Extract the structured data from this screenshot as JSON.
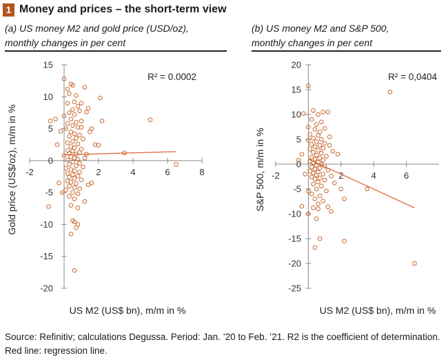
{
  "figure": {
    "number": "1",
    "title": "Money and prices – the short-term view"
  },
  "panels": [
    {
      "subtitle_line1": "(a) US money M2 and gold price (USD/oz),",
      "subtitle_line2": "monthly changes in per cent"
    },
    {
      "subtitle_line1": "(b) US money M2 and S&P 500,",
      "subtitle_line2": "monthly changes in per cent"
    }
  ],
  "source_text": "Source: Refinitiv; calculations Degussa. Period: Jan. ’20 to Feb. ’21. R2 is the coefficient of determination. Red line: regression line.",
  "colors": {
    "accent": "#b5541f",
    "marker": "#c8672d",
    "regression": "#e06a3b",
    "axis": "#888888"
  },
  "chart_data": [
    {
      "type": "scatter",
      "xlabel": "US M2 (US$ bn), m/m in %",
      "ylabel": "Gold price (US$/oz), m/m in %",
      "annotation": "R² = 0.0002",
      "xlim": [
        -2,
        8
      ],
      "ylim": [
        -20,
        15
      ],
      "xticks": [
        "-2",
        "0",
        "2",
        "4",
        "6",
        "8"
      ],
      "yticks": [
        "-20",
        "-15",
        "-10",
        "-5",
        "0",
        "5",
        "10",
        "15"
      ],
      "regression": {
        "x": [
          0,
          6.5
        ],
        "y": [
          0.9,
          1.4
        ]
      },
      "points": [
        [
          0.0,
          12.8
        ],
        [
          0.2,
          11.2
        ],
        [
          0.4,
          12.0
        ],
        [
          0.5,
          11.8
        ],
        [
          0.3,
          10.5
        ],
        [
          0.7,
          10.2
        ],
        [
          1.2,
          11.5
        ],
        [
          0.6,
          9.2
        ],
        [
          1.0,
          9.0
        ],
        [
          0.8,
          8.5
        ],
        [
          0.5,
          8.0
        ],
        [
          0.9,
          7.8
        ],
        [
          0.3,
          7.5
        ],
        [
          0.6,
          7.2
        ],
        [
          1.3,
          7.6
        ],
        [
          0.0,
          7.0
        ],
        [
          -0.5,
          6.5
        ],
        [
          -0.8,
          6.2
        ],
        [
          0.4,
          6.5
        ],
        [
          0.7,
          6.0
        ],
        [
          0.2,
          5.8
        ],
        [
          1.0,
          6.2
        ],
        [
          0.5,
          5.5
        ],
        [
          0.8,
          5.2
        ],
        [
          1.6,
          5.0
        ],
        [
          0.1,
          5.0
        ],
        [
          -0.2,
          4.6
        ],
        [
          0.4,
          4.5
        ],
        [
          0.6,
          4.2
        ],
        [
          0.9,
          4.0
        ],
        [
          0.3,
          3.8
        ],
        [
          0.7,
          3.5
        ],
        [
          1.1,
          3.4
        ],
        [
          0.5,
          3.0
        ],
        [
          0.2,
          2.8
        ],
        [
          0.8,
          2.6
        ],
        [
          -0.4,
          2.5
        ],
        [
          0.4,
          2.2
        ],
        [
          0.6,
          2.0
        ],
        [
          1.0,
          1.8
        ],
        [
          0.2,
          1.6
        ],
        [
          0.5,
          1.5
        ],
        [
          0.9,
          1.3
        ],
        [
          0.3,
          1.1
        ],
        [
          0.7,
          1.0
        ],
        [
          1.3,
          1.0
        ],
        [
          0.0,
          0.8
        ],
        [
          0.4,
          0.6
        ],
        [
          0.6,
          0.4
        ],
        [
          0.8,
          0.2
        ],
        [
          0.2,
          0.1
        ],
        [
          0.5,
          -0.2
        ],
        [
          0.9,
          -0.4
        ],
        [
          0.3,
          -0.6
        ],
        [
          0.7,
          -0.8
        ],
        [
          1.1,
          -1.0
        ],
        [
          0.1,
          -1.2
        ],
        [
          0.4,
          -1.4
        ],
        [
          0.6,
          -1.6
        ],
        [
          0.9,
          -1.8
        ],
        [
          0.2,
          -2.0
        ],
        [
          0.5,
          -2.2
        ],
        [
          0.8,
          -2.4
        ],
        [
          0.3,
          -2.6
        ],
        [
          0.6,
          -2.8
        ],
        [
          1.0,
          -3.0
        ],
        [
          0.2,
          -3.2
        ],
        [
          0.4,
          -3.4
        ],
        [
          0.7,
          -3.6
        ],
        [
          1.4,
          -3.8
        ],
        [
          0.3,
          -4.0
        ],
        [
          0.6,
          -4.2
        ],
        [
          0.9,
          -4.4
        ],
        [
          0.1,
          -4.6
        ],
        [
          0.5,
          -5.0
        ],
        [
          0.8,
          -5.2
        ],
        [
          0.3,
          -5.6
        ],
        [
          0.6,
          -6.0
        ],
        [
          1.2,
          -6.4
        ],
        [
          0.4,
          -7.0
        ],
        [
          0.8,
          -7.4
        ],
        [
          -0.9,
          -7.2
        ],
        [
          0.5,
          -9.4
        ],
        [
          0.6,
          -9.6
        ],
        [
          0.8,
          -10.0
        ],
        [
          0.4,
          -11.5
        ],
        [
          0.6,
          -17.2
        ],
        [
          0.7,
          -10.5
        ],
        [
          1.5,
          4.5
        ],
        [
          1.8,
          2.5
        ],
        [
          2.1,
          9.8
        ],
        [
          2.2,
          6.2
        ],
        [
          2.0,
          2.4
        ],
        [
          3.5,
          1.2
        ],
        [
          5.0,
          6.4
        ],
        [
          6.5,
          -0.6
        ],
        [
          1.6,
          -3.5
        ],
        [
          1.2,
          0.4
        ],
        [
          -0.3,
          -3.5
        ],
        [
          -0.1,
          -5.0
        ],
        [
          1.0,
          5.2
        ],
        [
          0.2,
          9.0
        ],
        [
          1.4,
          8.2
        ]
      ]
    },
    {
      "type": "scatter",
      "xlabel": "US M2 (US$ bn), m/m in %",
      "ylabel": "S&P 500, m/m in %",
      "annotation": "R² = 0,0404",
      "xlim": [
        -2,
        8
      ],
      "ylim": [
        -25,
        20
      ],
      "xticks": [
        "-2",
        "0",
        "2",
        "4",
        "6"
      ],
      "yticks": [
        "-25",
        "-20",
        "-15",
        "-10",
        "-5",
        "0",
        "5",
        "10",
        "15",
        "20"
      ],
      "regression": {
        "x": [
          0,
          6.5
        ],
        "y": [
          1.0,
          -8.8
        ]
      },
      "points": [
        [
          0.0,
          15.8
        ],
        [
          5.0,
          14.5
        ],
        [
          6.5,
          -20.0
        ],
        [
          0.3,
          10.8
        ],
        [
          0.9,
          10.5
        ],
        [
          -0.3,
          10.2
        ],
        [
          0.6,
          10.0
        ],
        [
          1.2,
          10.5
        ],
        [
          0.2,
          9.0
        ],
        [
          0.8,
          8.5
        ],
        [
          0.5,
          8.0
        ],
        [
          0.0,
          7.5
        ],
        [
          1.0,
          7.2
        ],
        [
          0.4,
          7.0
        ],
        [
          0.7,
          6.5
        ],
        [
          0.1,
          6.0
        ],
        [
          0.6,
          5.8
        ],
        [
          1.3,
          5.5
        ],
        [
          0.3,
          5.2
        ],
        [
          0.8,
          5.0
        ],
        [
          0.0,
          4.8
        ],
        [
          0.5,
          4.5
        ],
        [
          1.0,
          4.2
        ],
        [
          0.2,
          4.0
        ],
        [
          0.7,
          3.8
        ],
        [
          0.4,
          3.5
        ],
        [
          0.9,
          3.2
        ],
        [
          0.1,
          3.0
        ],
        [
          0.6,
          2.8
        ],
        [
          1.5,
          2.6
        ],
        [
          0.3,
          2.4
        ],
        [
          0.8,
          2.2
        ],
        [
          -0.4,
          2.0
        ],
        [
          0.5,
          1.8
        ],
        [
          1.1,
          1.6
        ],
        [
          0.2,
          1.4
        ],
        [
          0.7,
          1.2
        ],
        [
          0.4,
          1.0
        ],
        [
          0.9,
          0.8
        ],
        [
          0.1,
          0.6
        ],
        [
          0.6,
          0.4
        ],
        [
          0.3,
          0.2
        ],
        [
          0.8,
          0.0
        ],
        [
          0.5,
          -0.2
        ],
        [
          1.0,
          -0.4
        ],
        [
          0.2,
          -0.6
        ],
        [
          0.7,
          -0.8
        ],
        [
          0.4,
          -1.0
        ],
        [
          1.2,
          -1.2
        ],
        [
          0.1,
          -1.4
        ],
        [
          0.6,
          -1.6
        ],
        [
          0.3,
          -1.8
        ],
        [
          0.9,
          -2.0
        ],
        [
          0.5,
          -2.2
        ],
        [
          1.4,
          -2.4
        ],
        [
          0.2,
          -2.6
        ],
        [
          0.7,
          -2.8
        ],
        [
          0.4,
          -3.0
        ],
        [
          1.0,
          -3.2
        ],
        [
          0.6,
          -3.6
        ],
        [
          0.3,
          -4.0
        ],
        [
          0.8,
          -4.4
        ],
        [
          0.5,
          -5.0
        ],
        [
          1.1,
          -5.4
        ],
        [
          0.2,
          -6.0
        ],
        [
          0.7,
          -6.4
        ],
        [
          0.4,
          -7.0
        ],
        [
          0.9,
          -7.4
        ],
        [
          0.6,
          -8.0
        ],
        [
          1.2,
          -8.6
        ],
        [
          0.3,
          -8.8
        ],
        [
          0.6,
          -9.0
        ],
        [
          1.4,
          -9.5
        ],
        [
          0.0,
          -10.0
        ],
        [
          0.5,
          -11.0
        ],
        [
          0.7,
          -15.0
        ],
        [
          0.4,
          -16.8
        ],
        [
          2.2,
          -15.5
        ],
        [
          -0.4,
          -8.5
        ],
        [
          1.8,
          2.0
        ],
        [
          2.0,
          -5.0
        ],
        [
          2.2,
          -7.0
        ],
        [
          3.6,
          -5.0
        ],
        [
          1.6,
          -3.8
        ],
        [
          -0.6,
          0.8
        ],
        [
          -0.2,
          -2.0
        ],
        [
          1.3,
          3.8
        ],
        [
          0.0,
          -5.5
        ]
      ]
    }
  ]
}
